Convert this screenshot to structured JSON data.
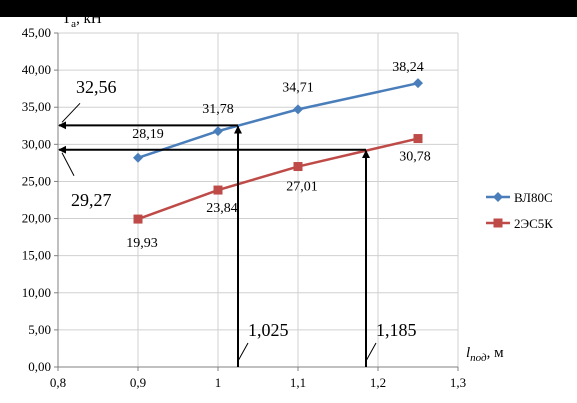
{
  "chart_data": {
    "type": "line",
    "y_label_text": "T",
    "y_label_sub": "a",
    "y_label_unit": ", кН",
    "x_label_text": "l",
    "x_label_sub": "под",
    "x_label_unit": ", м",
    "xlim": [
      0.8,
      1.3
    ],
    "ylim": [
      0,
      45
    ],
    "x_ticks": [
      {
        "value": 0.8,
        "label": "0,8"
      },
      {
        "value": 0.9,
        "label": "0,9"
      },
      {
        "value": 1.0,
        "label": "1"
      },
      {
        "value": 1.1,
        "label": "1,1"
      },
      {
        "value": 1.2,
        "label": "1,2"
      },
      {
        "value": 1.3,
        "label": "1,3"
      }
    ],
    "y_ticks": [
      {
        "value": 0,
        "label": "0,00"
      },
      {
        "value": 5,
        "label": "5,00"
      },
      {
        "value": 10,
        "label": "10,00"
      },
      {
        "value": 15,
        "label": "15,00"
      },
      {
        "value": 20,
        "label": "20,00"
      },
      {
        "value": 25,
        "label": "25,00"
      },
      {
        "value": 30,
        "label": "30,00"
      },
      {
        "value": 35,
        "label": "35,00"
      },
      {
        "value": 40,
        "label": "40,00"
      },
      {
        "value": 45,
        "label": "45,00"
      }
    ],
    "grid": true,
    "legend_position": "right",
    "series": [
      {
        "name": "ВЛ80С",
        "color": "#4a7ebb",
        "marker": "diamond",
        "x": [
          0.9,
          1.0,
          1.1,
          1.25
        ],
        "y": [
          28.19,
          31.78,
          34.71,
          38.24
        ],
        "labels": [
          "28,19",
          "31,78",
          "34,71",
          "38,24"
        ]
      },
      {
        "name": "2ЭС5К",
        "color": "#be4b48",
        "marker": "square",
        "x": [
          0.9,
          1.0,
          1.1,
          1.25
        ],
        "y": [
          19.93,
          23.84,
          27.01,
          30.78
        ],
        "labels": [
          "19,93",
          "23,84",
          "27,01",
          "30,78"
        ]
      }
    ],
    "annotations": [
      {
        "x": 1.025,
        "y": 32.56,
        "x_label": "1,025",
        "y_label": "32,56"
      },
      {
        "x": 1.185,
        "y": 29.27,
        "x_label": "1,185",
        "y_label": "29,27"
      }
    ]
  }
}
